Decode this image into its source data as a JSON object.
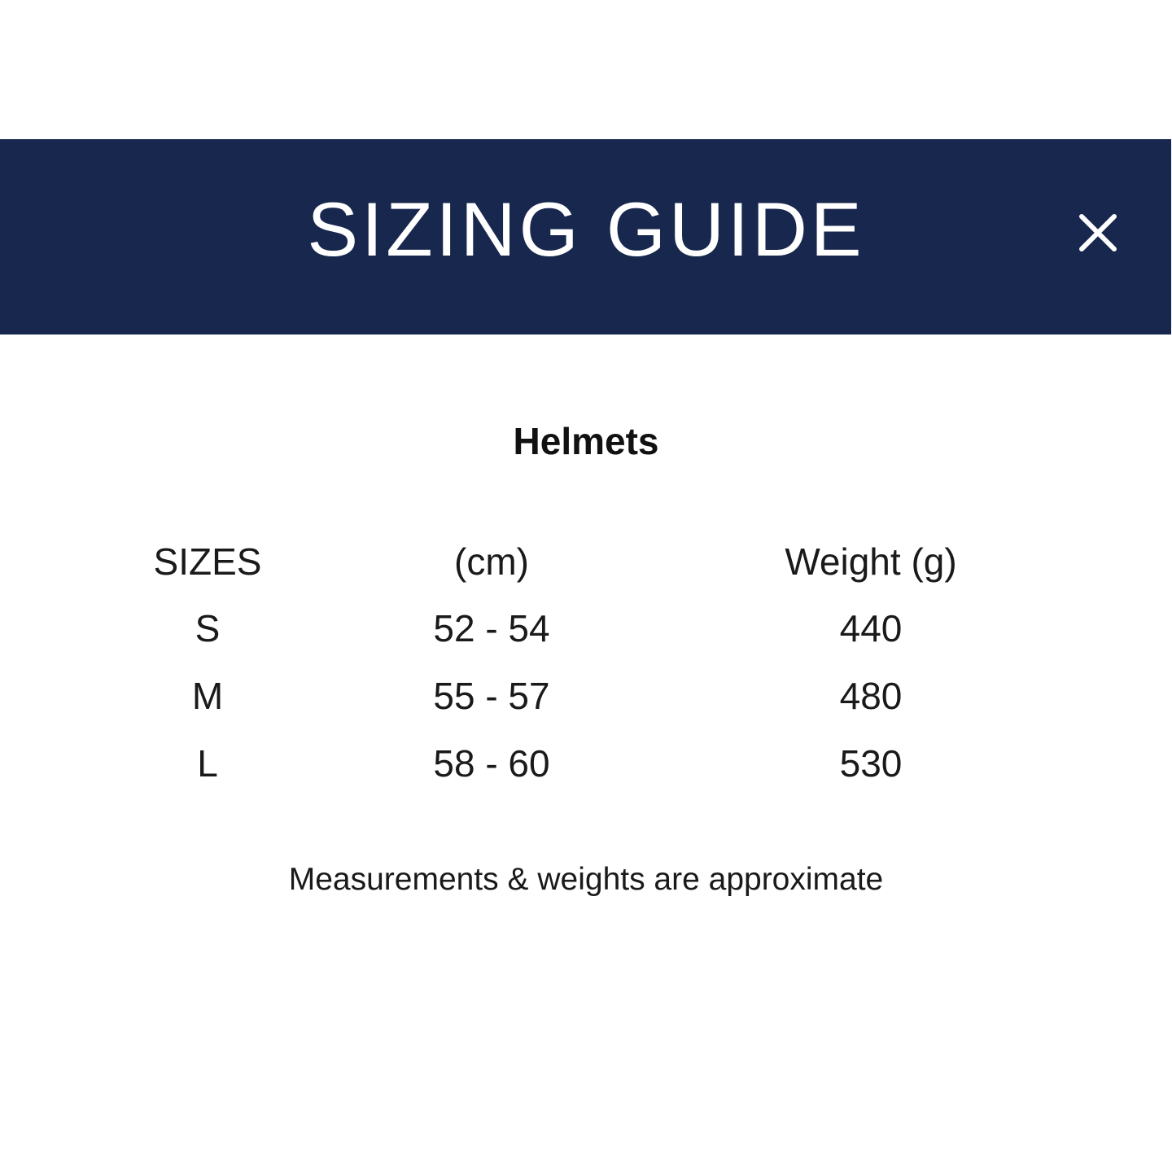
{
  "header": {
    "title": "SIZING GUIDE",
    "close_icon": "close-icon",
    "background": "#17274d"
  },
  "section_title": "Helmets",
  "table": {
    "columns": [
      "SIZES",
      "(cm)",
      "Weight (g)"
    ],
    "rows": [
      [
        "S",
        "52 - 54",
        "440"
      ],
      [
        "M",
        "55 - 57",
        "480"
      ],
      [
        "L",
        "58 - 60",
        "530"
      ]
    ]
  },
  "footnote": "Measurements & weights are approximate"
}
